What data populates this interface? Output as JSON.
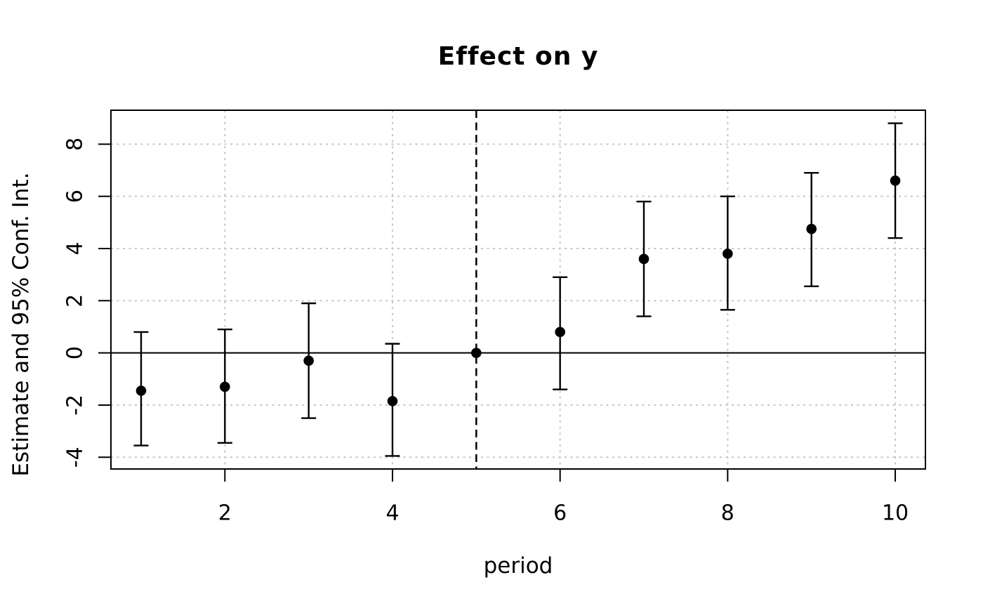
{
  "chart_data": {
    "type": "scatter",
    "subtype": "point-estimates-with-error-bars",
    "title": "Effect on y",
    "xlabel": "period",
    "ylabel": "Estimate and 95% Conf. Int.",
    "x": [
      1,
      2,
      3,
      4,
      5,
      6,
      7,
      8,
      9,
      10
    ],
    "series": [
      {
        "name": "estimate",
        "values": [
          -1.45,
          -1.3,
          -0.3,
          -1.85,
          0,
          0.8,
          3.6,
          3.8,
          4.75,
          6.6
        ]
      },
      {
        "name": "ci_low",
        "values": [
          -3.55,
          -3.45,
          -2.5,
          -3.95,
          0,
          -1.4,
          1.4,
          1.65,
          2.55,
          4.4
        ]
      },
      {
        "name": "ci_high",
        "values": [
          0.8,
          0.9,
          1.9,
          0.35,
          0,
          2.9,
          5.8,
          6.0,
          6.9,
          8.8
        ]
      }
    ],
    "x_ticks": [
      2,
      4,
      6,
      8,
      10
    ],
    "y_ticks": [
      -4,
      -2,
      0,
      2,
      4,
      6,
      8
    ],
    "xlim": [
      0.64,
      10.36
    ],
    "ylim": [
      -4.45,
      9.3
    ],
    "reference_vline_x": 5,
    "reference_hline_y": 0,
    "grid": true,
    "legend": "none",
    "colors": {
      "points": "#000000",
      "error_bars": "#000000",
      "grid": "#c6c6c6",
      "axis": "#000000",
      "background": "#ffffff"
    }
  }
}
